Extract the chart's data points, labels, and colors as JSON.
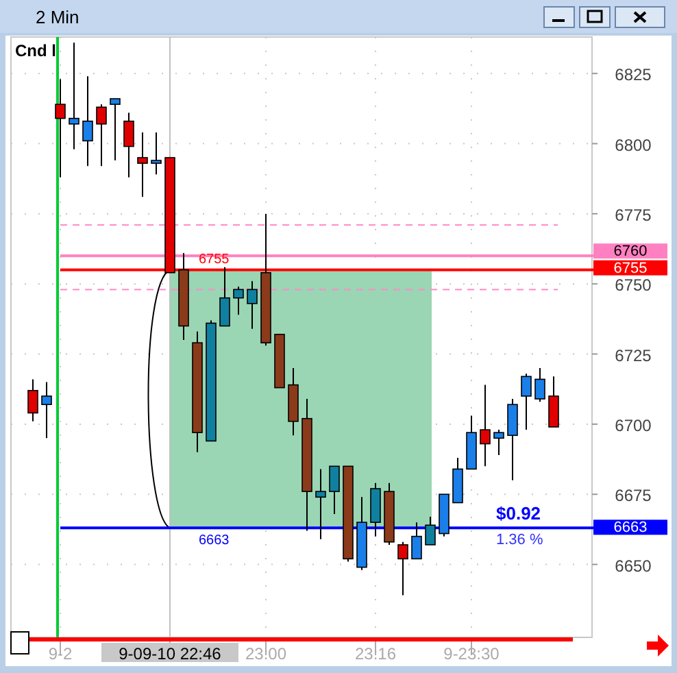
{
  "chart_data": {
    "type": "candlestick",
    "title": "2 Min",
    "categories": [
      null,
      null,
      "9-2",
      null,
      null,
      null,
      null,
      null,
      null,
      null,
      "9-09-10 22:46",
      null,
      null,
      null,
      null,
      null,
      null,
      "23:00",
      null,
      null,
      null,
      null,
      null,
      null,
      null,
      "23:16",
      null,
      null,
      null,
      null,
      null,
      null,
      "9-23:30",
      null,
      null,
      null,
      null,
      null,
      null
    ],
    "ohlc": [
      [
        6712,
        6716,
        6701,
        6704
      ],
      [
        6707,
        6715,
        6695,
        6710
      ],
      [
        6814,
        6823,
        6788,
        6809
      ],
      [
        6807,
        6836,
        6798,
        6809
      ],
      [
        6801,
        6824,
        6792,
        6808
      ],
      [
        6813,
        6814,
        6792,
        6807
      ],
      [
        6814,
        6816,
        6794,
        6816
      ],
      [
        6808,
        6811,
        6788,
        6799
      ],
      [
        6795,
        6804,
        6781,
        6793
      ],
      [
        6793,
        6804,
        6789,
        6794
      ],
      [
        6795,
        6795,
        6754,
        6754
      ],
      [
        6755,
        6761,
        6730,
        6735
      ],
      [
        6729,
        6733,
        6690,
        6697
      ],
      [
        6694,
        6737,
        6694,
        6736
      ],
      [
        6735,
        6756,
        6735,
        6745
      ],
      [
        6745,
        6749,
        6739,
        6748
      ],
      [
        6743,
        6751,
        6734,
        6748
      ],
      [
        6754,
        6775,
        6728,
        6729
      ],
      [
        6732,
        6732,
        6713,
        6713
      ],
      [
        6714,
        6720,
        6696,
        6701
      ],
      [
        6702,
        6709,
        6662,
        6676
      ],
      [
        6674,
        6684,
        6659,
        6676
      ],
      [
        6676,
        6685,
        6668,
        6685
      ],
      [
        6685,
        6685,
        6651,
        6652
      ],
      [
        6649,
        6674,
        6648,
        6665
      ],
      [
        6665,
        6679,
        6660,
        6677
      ],
      [
        6676,
        6679,
        6657,
        6658
      ],
      [
        6657,
        6658,
        6639,
        6652
      ],
      [
        6652,
        6665,
        6652,
        6660
      ],
      [
        6657,
        6667,
        6657,
        6664
      ],
      [
        6661,
        6675,
        6660,
        6675
      ],
      [
        6672,
        6688,
        6672,
        6684
      ],
      [
        6684,
        6703,
        6684,
        6697
      ],
      [
        6698,
        6714,
        6685,
        6693
      ],
      [
        6695,
        6698,
        6689,
        6697
      ],
      [
        6696,
        6709,
        6680,
        6707
      ],
      [
        6710,
        6718,
        6698,
        6717
      ],
      [
        6709,
        6720,
        6708,
        6716
      ],
      [
        6710,
        6717,
        6699,
        6699
      ]
    ],
    "colors": [
      "#e00000",
      "#1a7fe8",
      "#e00000",
      "#1a7fe8",
      "#1a7fe8",
      "#e00000",
      "#1a7fe8",
      "#e00000",
      "#e00000",
      "#1a7fe8",
      "#e00000",
      "#8b3a1a",
      "#8b3a1a",
      "#1080a0",
      "#1080a0",
      "#1080a0",
      "#1080a0",
      "#8b3a1a",
      "#8b3a1a",
      "#8b3a1a",
      "#8b3a1a",
      "#1080a0",
      "#1080a0",
      "#8b3a1a",
      "#1a7fe8",
      "#1080a0",
      "#8b3a1a",
      "#e00000",
      "#1a7fe8",
      "#1080a0",
      "#1a7fe8",
      "#1a7fe8",
      "#1a7fe8",
      "#e00000",
      "#1a7fe8",
      "#1a7fe8",
      "#1a7fe8",
      "#1a7fe8",
      "#e00000"
    ],
    "ylim": [
      6624,
      6838
    ],
    "yticks": [
      6650,
      6675,
      6700,
      6725,
      6750,
      6775,
      6800,
      6825
    ],
    "grid": true,
    "ref_lines": [
      {
        "axis": "y",
        "value": 6771,
        "color": "#ff88c8",
        "line_style": "dashed"
      },
      {
        "axis": "y",
        "value": 6748,
        "color": "#ff88c8",
        "line_style": "dashed"
      },
      {
        "axis": "y",
        "value": 6760,
        "label": "6760",
        "color": "#ff80c0",
        "line_style": "solid"
      },
      {
        "axis": "y",
        "value": 6755,
        "label": "6755",
        "color": "#ff0000",
        "line_style": "solid"
      },
      {
        "axis": "y",
        "value": 6663,
        "label": "6663",
        "color": "#0000ff",
        "line_style": "solid"
      },
      {
        "axis": "x",
        "value": "9-09-10 22:46",
        "color": "#c0c0c0",
        "line_style": "solid"
      },
      {
        "axis": "x",
        "value": "9-2",
        "color": "#00cc33",
        "line_style": "solid"
      }
    ],
    "annotations": [
      "Cnd l",
      {
        "text": "6755",
        "y": 6755
      },
      {
        "text": "6663",
        "y": 6663
      },
      {
        "text": "$0.92",
        "y": 6663
      },
      {
        "text": "1.36 %",
        "y": 6663
      }
    ]
  }
}
